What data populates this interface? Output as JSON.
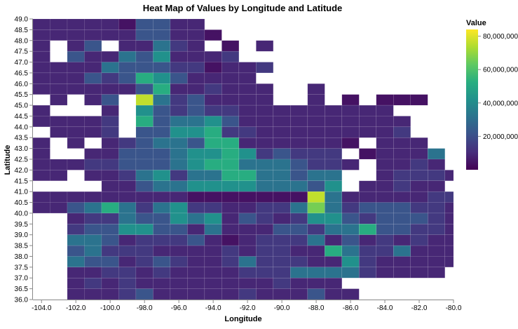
{
  "chart_data": {
    "type": "heatmap",
    "title": "Heat Map of Values by Longitude and Latitude",
    "xlabel": "Longitude",
    "ylabel": "Latitude",
    "xlim": [
      -104.5,
      -80.0
    ],
    "ylim": [
      36.0,
      49.0
    ],
    "x_tick_labels": [
      "-104.0",
      "-102.0",
      "-100.0",
      "-98.0",
      "-96.0",
      "-94.0",
      "-92.0",
      "-90.0",
      "-88.0",
      "-86.0",
      "-84.0",
      "-82.0",
      "-80.0"
    ],
    "y_tick_labels": [
      "36.0",
      "36.5",
      "37.0",
      "37.5",
      "38.0",
      "38.5",
      "39.0",
      "39.5",
      "40.0",
      "40.5",
      "41.0",
      "41.5",
      "42.0",
      "42.5",
      "43.0",
      "43.5",
      "44.0",
      "44.5",
      "45.0",
      "45.5",
      "46.0",
      "46.5",
      "47.0",
      "47.5",
      "48.0",
      "48.5",
      "49.0"
    ],
    "x_bins": [
      -104.5,
      -103.5,
      -102.5,
      -101.5,
      -100.5,
      -99.5,
      -98.5,
      -97.5,
      -96.5,
      -95.5,
      -94.5,
      -93.5,
      -92.5,
      -91.5,
      -90.5,
      -89.5,
      -88.5,
      -87.5,
      -86.5,
      -85.5,
      -84.5,
      -83.5,
      -82.5,
      -81.5,
      -80.5
    ],
    "y_bins": [
      49.0,
      48.5,
      48.0,
      47.5,
      47.0,
      46.5,
      46.0,
      45.5,
      45.0,
      44.5,
      44.0,
      43.5,
      43.0,
      42.5,
      42.0,
      41.5,
      41.0,
      40.5,
      40.0,
      39.5,
      39.0,
      38.5,
      38.0,
      37.5,
      37.0,
      36.5
    ],
    "grid_rows": [
      "2222214422..............",
      "22222244221.............",
      "2.24.22532.1.2..........",
      "2.4225462223............",
      "22225444331223..........",
      "2224347642222...........",
      "22222247223222..2.......",
      ".2.24.95342222..2.1.111.",
      "2...2.643433222222222...",
      "22223.7455642222222222..",
      ".2223.4466733222222223..",
      "2.2.234554772222221.222.",
      "2..224445667634333.12225",
      "2223344456775554332.2232.",
      "22.223563557755455..23332",
      "....22455666655546.22322.",
      "22222222211111112522222332",
      "2245753563322335353444332",
      "..233544656243236643444322",
      "..344664425222443557443321",
      "..5542333421233352423232221",
      "..4533322223233227533522222",
      "..54423432235333226322222.2.",
      "..2233232222333555532222.2.",
      "..2323222222223222.........",
      "..22234222223222422........"
    ],
    "value_levels": [
      1500000,
      4000000,
      9000000,
      14000000,
      22000000,
      32000000,
      42000000,
      52000000,
      62000000,
      76000000
    ],
    "hot_cells": [
      {
        "x": -88.5,
        "y": 41.0,
        "value": 76000000
      },
      {
        "x": -88.5,
        "y": 40.5,
        "value": 66000000
      }
    ],
    "legend": {
      "title": "Value",
      "position": "right",
      "tick_labels": [
        "80,000,000",
        "60,000,000",
        "40,000,000",
        "20,000,000"
      ],
      "tick_values": [
        80000000,
        60000000,
        40000000,
        20000000
      ],
      "domain": [
        0,
        84000000
      ]
    },
    "color_scheme": "viridis",
    "grid": false
  }
}
